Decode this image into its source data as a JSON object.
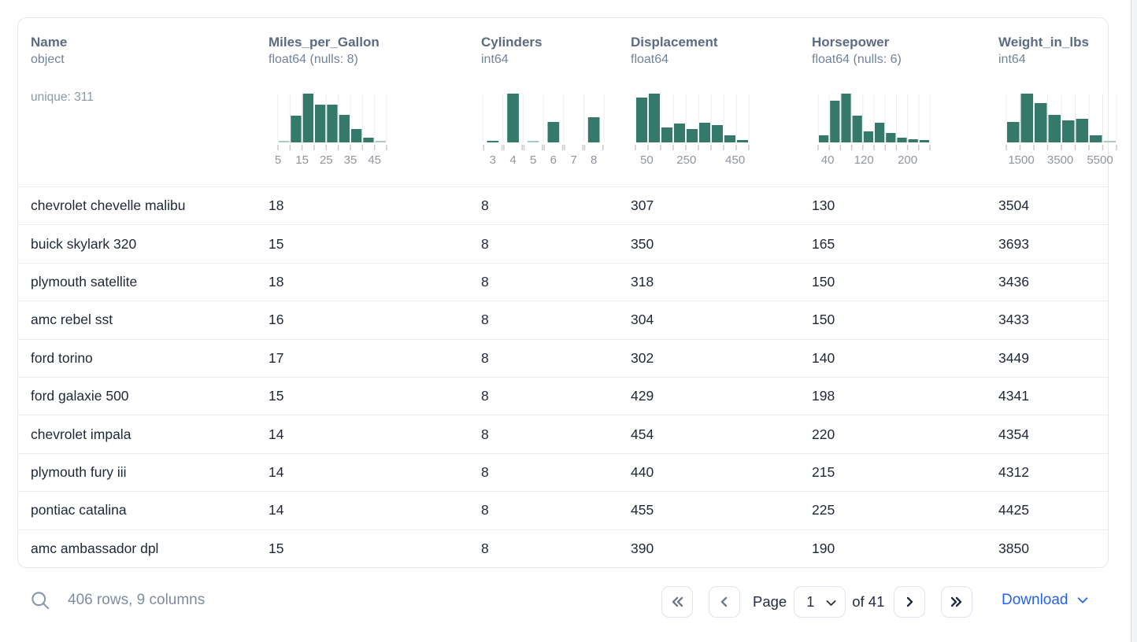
{
  "columns": [
    {
      "name": "Name",
      "dtype": "object",
      "extra": "unique: 311",
      "hist": null
    },
    {
      "name": "Miles_per_Gallon",
      "dtype": "float64 (nulls: 8)",
      "hist": {
        "style": "continuous",
        "width": 138,
        "ml": 12,
        "bin_start": 5,
        "bin_width": 5,
        "bars": [
          0.03,
          0.55,
          1.0,
          0.78,
          0.77,
          0.56,
          0.28,
          0.1,
          0.03
        ],
        "labels": [
          {
            "t": "5",
            "p": 0.0
          },
          {
            "t": "15",
            "p": 0.222
          },
          {
            "t": "25",
            "p": 0.444
          },
          {
            "t": "35",
            "p": 0.667
          },
          {
            "t": "45",
            "p": 0.889
          }
        ]
      }
    },
    {
      "name": "Cylinders",
      "dtype": "int64",
      "hist": {
        "style": "categorical",
        "width": 154,
        "ml": 2,
        "bars": [
          0.04,
          1.0,
          0.03,
          0.42,
          0.0,
          0.52
        ],
        "labels": [
          {
            "t": "3",
            "bin": 0
          },
          {
            "t": "4",
            "bin": 1
          },
          {
            "t": "5",
            "bin": 2
          },
          {
            "t": "6",
            "bin": 3
          },
          {
            "t": "7",
            "bin": 4
          },
          {
            "t": "8",
            "bin": 5
          }
        ]
      }
    },
    {
      "name": "Displacement",
      "dtype": "float64",
      "hist": {
        "style": "continuous",
        "width": 144,
        "ml": 6,
        "bars": [
          0.92,
          1.0,
          0.3,
          0.38,
          0.27,
          0.4,
          0.35,
          0.15,
          0.05
        ],
        "labels": [
          {
            "t": "50",
            "p": 0.1
          },
          {
            "t": "250",
            "p": 0.45
          },
          {
            "t": "450",
            "p": 0.88
          }
        ]
      }
    },
    {
      "name": "Horsepower",
      "dtype": "float64 (nulls: 6)",
      "hist": {
        "style": "continuous",
        "width": 142,
        "ml": 8,
        "bars": [
          0.15,
          0.85,
          1.0,
          0.55,
          0.22,
          0.4,
          0.2,
          0.1,
          0.07,
          0.05
        ],
        "labels": [
          {
            "t": "40",
            "p": 0.085
          },
          {
            "t": "120",
            "p": 0.41
          },
          {
            "t": "200",
            "p": 0.8
          }
        ]
      }
    },
    {
      "name": "Weight_in_lbs",
      "dtype": "int64",
      "hist": {
        "style": "continuous",
        "width": 140,
        "ml": 10,
        "bars": [
          0.42,
          1.0,
          0.8,
          0.57,
          0.45,
          0.48,
          0.15,
          0.03
        ],
        "labels": [
          {
            "t": "1500",
            "p": 0.136
          },
          {
            "t": "3500",
            "p": 0.49
          },
          {
            "t": "5500",
            "p": 0.85
          }
        ]
      }
    }
  ],
  "rows": [
    [
      "chevrolet chevelle malibu",
      "18",
      "8",
      "307",
      "130",
      "3504"
    ],
    [
      "buick skylark 320",
      "15",
      "8",
      "350",
      "165",
      "3693"
    ],
    [
      "plymouth satellite",
      "18",
      "8",
      "318",
      "150",
      "3436"
    ],
    [
      "amc rebel sst",
      "16",
      "8",
      "304",
      "150",
      "3433"
    ],
    [
      "ford torino",
      "17",
      "8",
      "302",
      "140",
      "3449"
    ],
    [
      "ford galaxie 500",
      "15",
      "8",
      "429",
      "198",
      "4341"
    ],
    [
      "chevrolet impala",
      "14",
      "8",
      "454",
      "220",
      "4354"
    ],
    [
      "plymouth fury iii",
      "14",
      "8",
      "440",
      "215",
      "4312"
    ],
    [
      "pontiac catalina",
      "14",
      "8",
      "455",
      "225",
      "4425"
    ],
    [
      "amc ambassador dpl",
      "15",
      "8",
      "390",
      "190",
      "3850"
    ]
  ],
  "footer": {
    "summary": "406 rows, 9 columns",
    "page_label": "Page",
    "page_value": "1",
    "of_label": "of 41",
    "download_label": "Download"
  },
  "colors": {
    "bar": "#35796b",
    "bar_faint": "#a9cac2",
    "gridline": "#e9ebec",
    "tick": "#c6cacd",
    "tick_label": "#8f959c",
    "accent_link": "#2563eb",
    "row_text": "#202938",
    "header_text": "#5a6b83"
  }
}
